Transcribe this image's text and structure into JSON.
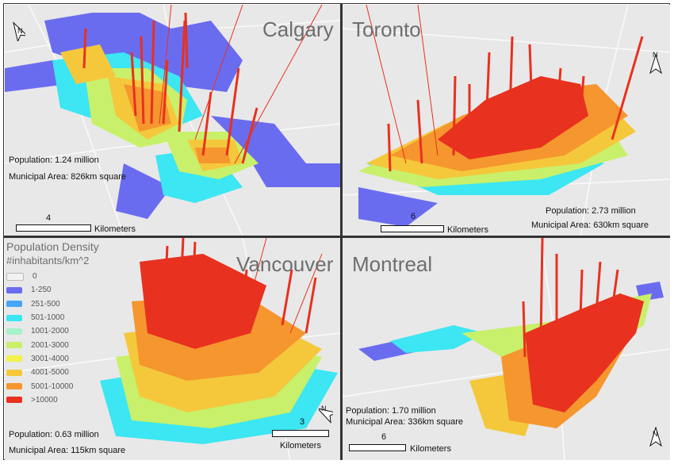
{
  "panels": {
    "calgary": {
      "name": "Calgary",
      "population": "Population: 1.24 million",
      "area": "Municipal Area: 826km square",
      "scale_num": "4",
      "scale_unit": "Kilometers"
    },
    "toronto": {
      "name": "Toronto",
      "population": "Population: 2.73 million",
      "area": "Municipal Area:  630km square",
      "scale_num": "6",
      "scale_unit": "Kilometers"
    },
    "vancouver": {
      "name": "Vancouver",
      "population": "Population: 0.63 million",
      "area": "Municipal Area:  115km square",
      "scale_num": "3",
      "scale_unit": "Kilometers"
    },
    "montreal": {
      "name": "Montreal",
      "population": "Population: 1.70 million",
      "area": "Municipal Area:  336km square",
      "scale_num": "6",
      "scale_unit": "Kilometers"
    }
  },
  "north_label": "N",
  "legend": {
    "title": "Population Density",
    "unit": "#inhabitants/km^2",
    "classes": [
      {
        "label": "0",
        "color": "#f2f2f2"
      },
      {
        "label": "1-250",
        "color": "#6a6cf0"
      },
      {
        "label": "251-500",
        "color": "#47a6f5"
      },
      {
        "label": "501-1000",
        "color": "#3ce6f2"
      },
      {
        "label": "1001-2000",
        "color": "#a6f2c8"
      },
      {
        "label": "2001-3000",
        "color": "#c8f06a"
      },
      {
        "label": "3001-4000",
        "color": "#f2f24a"
      },
      {
        "label": "4001-5000",
        "color": "#f5c83c"
      },
      {
        "label": "5001-10000",
        "color": "#f5962e"
      },
      {
        "label": ">10000",
        "color": "#e8311e"
      }
    ]
  }
}
